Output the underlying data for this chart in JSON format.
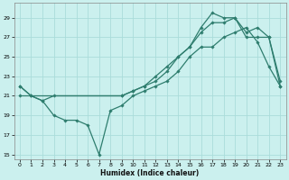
{
  "xlabel": "Humidex (Indice chaleur)",
  "line_color": "#2E7D6E",
  "bg_color": "#CBF0EE",
  "grid_color": "#AADCDA",
  "xlim": [
    -0.5,
    23.5
  ],
  "ylim": [
    14.5,
    30.5
  ],
  "xticks": [
    0,
    1,
    2,
    3,
    4,
    5,
    6,
    7,
    8,
    9,
    10,
    11,
    12,
    13,
    14,
    15,
    16,
    17,
    18,
    19,
    20,
    21,
    22,
    23
  ],
  "yticks": [
    15,
    17,
    19,
    21,
    23,
    25,
    27,
    29
  ],
  "line1_x": [
    0,
    1,
    2,
    3,
    4,
    5,
    6,
    7,
    8,
    9,
    10,
    11,
    12,
    13,
    14,
    15,
    16,
    17,
    18,
    19,
    20,
    21,
    22,
    23
  ],
  "line1_y": [
    22,
    21,
    20.5,
    19,
    18.5,
    18.5,
    18,
    15,
    19.5,
    20,
    21,
    21.5,
    22,
    22.5,
    23.5,
    25,
    26,
    26,
    27,
    27.5,
    28,
    26.5,
    24,
    22
  ],
  "line2_x": [
    0,
    1,
    2,
    3,
    9,
    10,
    11,
    12,
    13,
    14,
    15,
    16,
    17,
    18,
    19,
    20,
    21,
    22,
    23
  ],
  "line2_y": [
    22,
    21,
    20.5,
    21,
    21,
    21.5,
    22,
    22.5,
    23.5,
    25,
    26,
    28,
    29.5,
    29,
    29,
    27.5,
    28,
    27,
    22
  ],
  "line3_x": [
    0,
    9,
    10,
    11,
    12,
    13,
    14,
    15,
    16,
    17,
    18,
    19,
    20,
    21,
    22,
    23
  ],
  "line3_y": [
    21,
    21,
    21.5,
    22,
    23,
    24,
    25,
    26,
    27.5,
    28.5,
    28.5,
    29,
    27,
    27,
    27,
    22.5
  ]
}
